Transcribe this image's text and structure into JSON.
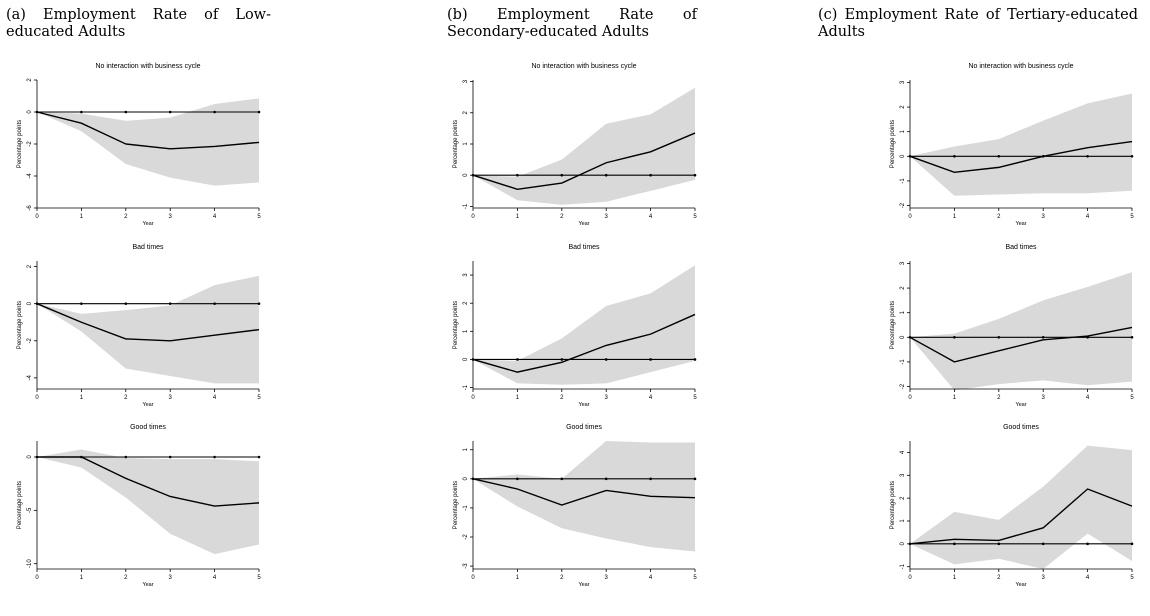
{
  "figure": {
    "columns": [
      {
        "title": "(a) Employment Rate of Low-educated Adults"
      },
      {
        "title": "(b)  Employment  Rate  of  Secondary-educated Adults"
      },
      {
        "title": "(c)  Employment  Rate  of  Tertiary-educated Adults"
      }
    ]
  },
  "chart_data": [
    {
      "type": "line",
      "column": 0,
      "row": 0,
      "title": "No interaction with business cycle",
      "xlabel": "Year",
      "ylabel": "Percentage points",
      "x": [
        0,
        1,
        2,
        3,
        4,
        5
      ],
      "xlim": [
        0,
        5
      ],
      "ylim": [
        -6,
        2
      ],
      "yticks": [
        2,
        0,
        -2,
        -4,
        -6
      ],
      "ytick_labels": [
        "2",
        "0",
        "-2",
        "-4",
        "-6"
      ],
      "series": [
        {
          "role": "estimate",
          "values": [
            0,
            -0.7,
            -2.0,
            -2.3,
            -2.15,
            -1.9
          ]
        },
        {
          "role": "ci_upper",
          "values": [
            0,
            -0.1,
            -0.55,
            -0.35,
            0.5,
            0.85
          ]
        },
        {
          "role": "ci_lower",
          "values": [
            0,
            -1.2,
            -3.25,
            -4.1,
            -4.6,
            -4.4
          ]
        },
        {
          "role": "zero_line",
          "values": [
            0,
            0,
            0,
            0,
            0,
            0
          ]
        }
      ]
    },
    {
      "type": "line",
      "column": 0,
      "row": 1,
      "title": "Bad times",
      "xlabel": "Year",
      "ylabel": "Percentage points",
      "x": [
        0,
        1,
        2,
        3,
        4,
        5
      ],
      "xlim": [
        0,
        5
      ],
      "ylim": [
        -4.6,
        2.3
      ],
      "yticks": [
        2,
        0,
        -2,
        -4
      ],
      "ytick_labels": [
        "2",
        "0",
        "-2",
        "-4"
      ],
      "series": [
        {
          "role": "estimate",
          "values": [
            0,
            -1.0,
            -1.9,
            -2.0,
            -1.7,
            -1.4
          ]
        },
        {
          "role": "ci_upper",
          "values": [
            0,
            -0.55,
            -0.35,
            -0.1,
            1.0,
            1.5
          ]
        },
        {
          "role": "ci_lower",
          "values": [
            0,
            -1.5,
            -3.5,
            -3.9,
            -4.3,
            -4.3
          ]
        },
        {
          "role": "zero_line",
          "values": [
            0,
            0,
            0,
            0,
            0,
            0
          ]
        }
      ]
    },
    {
      "type": "line",
      "column": 0,
      "row": 2,
      "title": "Good times",
      "xlabel": "Year",
      "ylabel": "Percentage points",
      "x": [
        0,
        1,
        2,
        3,
        4,
        5
      ],
      "xlim": [
        0,
        5
      ],
      "ylim": [
        -10.5,
        1.5
      ],
      "yticks": [
        0,
        -5,
        -10
      ],
      "ytick_labels": [
        "0",
        "-5",
        "-10"
      ],
      "series": [
        {
          "role": "estimate",
          "values": [
            0,
            0,
            -2.0,
            -3.7,
            -4.6,
            -4.3
          ]
        },
        {
          "role": "ci_upper",
          "values": [
            0,
            0.7,
            -0.1,
            -0.2,
            -0.2,
            -0.4
          ]
        },
        {
          "role": "ci_lower",
          "values": [
            0,
            -1.0,
            -3.8,
            -7.2,
            -9.1,
            -8.2
          ]
        },
        {
          "role": "zero_line",
          "values": [
            0,
            0,
            0,
            0,
            0,
            0
          ]
        }
      ]
    },
    {
      "type": "line",
      "column": 1,
      "row": 0,
      "title": "No interaction with business cycle",
      "xlabel": "Year",
      "ylabel": "Percentage points",
      "x": [
        0,
        1,
        2,
        3,
        4,
        5
      ],
      "xlim": [
        0,
        5
      ],
      "ylim": [
        -1.05,
        3.05
      ],
      "yticks": [
        3,
        2,
        1,
        0,
        -1
      ],
      "ytick_labels": [
        "3",
        "2",
        "1",
        "0",
        "-1"
      ],
      "series": [
        {
          "role": "estimate",
          "values": [
            0,
            -0.45,
            -0.25,
            0.4,
            0.75,
            1.35
          ]
        },
        {
          "role": "ci_upper",
          "values": [
            0,
            -0.05,
            0.5,
            1.65,
            1.95,
            2.8
          ]
        },
        {
          "role": "ci_lower",
          "values": [
            0,
            -0.8,
            -0.95,
            -0.85,
            -0.5,
            -0.15
          ]
        },
        {
          "role": "zero_line",
          "values": [
            0,
            0,
            0,
            0,
            0,
            0
          ]
        }
      ]
    },
    {
      "type": "line",
      "column": 1,
      "row": 1,
      "title": "Bad times",
      "xlabel": "Year",
      "ylabel": "Percentage points",
      "x": [
        0,
        1,
        2,
        3,
        4,
        5
      ],
      "xlim": [
        0,
        5
      ],
      "ylim": [
        -1.05,
        3.5
      ],
      "yticks": [
        3,
        2,
        1,
        0,
        -1
      ],
      "ytick_labels": [
        "3",
        "2",
        "1",
        "0",
        "-1"
      ],
      "series": [
        {
          "role": "estimate",
          "values": [
            0,
            -0.45,
            -0.1,
            0.5,
            0.9,
            1.6
          ]
        },
        {
          "role": "ci_upper",
          "values": [
            0,
            -0.05,
            0.75,
            1.9,
            2.35,
            3.35
          ]
        },
        {
          "role": "ci_lower",
          "values": [
            0,
            -0.85,
            -0.9,
            -0.85,
            -0.45,
            -0.05
          ]
        },
        {
          "role": "zero_line",
          "values": [
            0,
            0,
            0,
            0,
            0,
            0
          ]
        }
      ]
    },
    {
      "type": "line",
      "column": 1,
      "row": 2,
      "title": "Good times",
      "xlabel": "Year",
      "ylabel": "Percentage points",
      "x": [
        0,
        1,
        2,
        3,
        4,
        5
      ],
      "xlim": [
        0,
        5
      ],
      "ylim": [
        -3.1,
        1.3
      ],
      "yticks": [
        1,
        0,
        -1,
        -2,
        -3
      ],
      "ytick_labels": [
        "1",
        "0",
        "-1",
        "-2",
        "-3"
      ],
      "series": [
        {
          "role": "estimate",
          "values": [
            0,
            -0.35,
            -0.9,
            -0.4,
            -0.6,
            -0.65
          ]
        },
        {
          "role": "ci_upper",
          "values": [
            0,
            0.15,
            0.0,
            1.3,
            1.25,
            1.25
          ]
        },
        {
          "role": "ci_lower",
          "values": [
            0,
            -0.95,
            -1.7,
            -2.05,
            -2.35,
            -2.5
          ]
        },
        {
          "role": "zero_line",
          "values": [
            0,
            0,
            0,
            0,
            0,
            0
          ]
        }
      ]
    },
    {
      "type": "line",
      "column": 2,
      "row": 0,
      "title": "No interaction with business cycle",
      "xlabel": "Year",
      "ylabel": "Percentage points",
      "x": [
        0,
        1,
        2,
        3,
        4,
        5
      ],
      "xlim": [
        0,
        5
      ],
      "ylim": [
        -2.1,
        3.1
      ],
      "yticks": [
        3,
        2,
        1,
        0,
        -1,
        -2
      ],
      "ytick_labels": [
        "3",
        "2",
        "1",
        "0",
        "-1",
        "-2"
      ],
      "series": [
        {
          "role": "estimate",
          "values": [
            0,
            -0.65,
            -0.45,
            0.0,
            0.35,
            0.6
          ]
        },
        {
          "role": "ci_upper",
          "values": [
            0,
            0.4,
            0.7,
            1.45,
            2.15,
            2.55
          ]
        },
        {
          "role": "ci_lower",
          "values": [
            0,
            -1.6,
            -1.55,
            -1.5,
            -1.5,
            -1.4
          ]
        },
        {
          "role": "zero_line",
          "values": [
            0,
            0,
            0,
            0,
            0,
            0
          ]
        }
      ]
    },
    {
      "type": "line",
      "column": 2,
      "row": 1,
      "title": "Bad times",
      "xlabel": "Year",
      "ylabel": "Percentage points",
      "x": [
        0,
        1,
        2,
        3,
        4,
        5
      ],
      "xlim": [
        0,
        5
      ],
      "ylim": [
        -2.1,
        3.1
      ],
      "yticks": [
        3,
        2,
        1,
        0,
        -1,
        -2
      ],
      "ytick_labels": [
        "3",
        "2",
        "1",
        "0",
        "-1",
        "-2"
      ],
      "series": [
        {
          "role": "estimate",
          "values": [
            0,
            -1.0,
            -0.55,
            -0.1,
            0.05,
            0.4
          ]
        },
        {
          "role": "ci_upper",
          "values": [
            0,
            0.15,
            0.75,
            1.5,
            2.05,
            2.65
          ]
        },
        {
          "role": "ci_lower",
          "values": [
            0,
            -2.15,
            -1.9,
            -1.75,
            -1.95,
            -1.8
          ]
        },
        {
          "role": "zero_line",
          "values": [
            0,
            0,
            0,
            0,
            0,
            0
          ]
        }
      ]
    },
    {
      "type": "line",
      "column": 2,
      "row": 2,
      "title": "Good times",
      "xlabel": "Year",
      "ylabel": "Percentage points",
      "x": [
        0,
        1,
        2,
        3,
        4,
        5
      ],
      "xlim": [
        0,
        5
      ],
      "ylim": [
        -1.1,
        4.5
      ],
      "yticks": [
        4,
        3,
        2,
        1,
        0,
        -1
      ],
      "ytick_labels": [
        "4",
        "3",
        "2",
        "1",
        "0",
        "-1"
      ],
      "series": [
        {
          "role": "estimate",
          "values": [
            0,
            0.2,
            0.15,
            0.7,
            2.4,
            1.65
          ]
        },
        {
          "role": "ci_upper",
          "values": [
            0,
            1.4,
            1.05,
            2.5,
            4.3,
            4.1
          ]
        },
        {
          "role": "ci_lower",
          "values": [
            0,
            -0.9,
            -0.65,
            -1.1,
            0.45,
            -0.75
          ]
        },
        {
          "role": "zero_line",
          "values": [
            0,
            0,
            0,
            0,
            0,
            0
          ]
        }
      ]
    }
  ]
}
